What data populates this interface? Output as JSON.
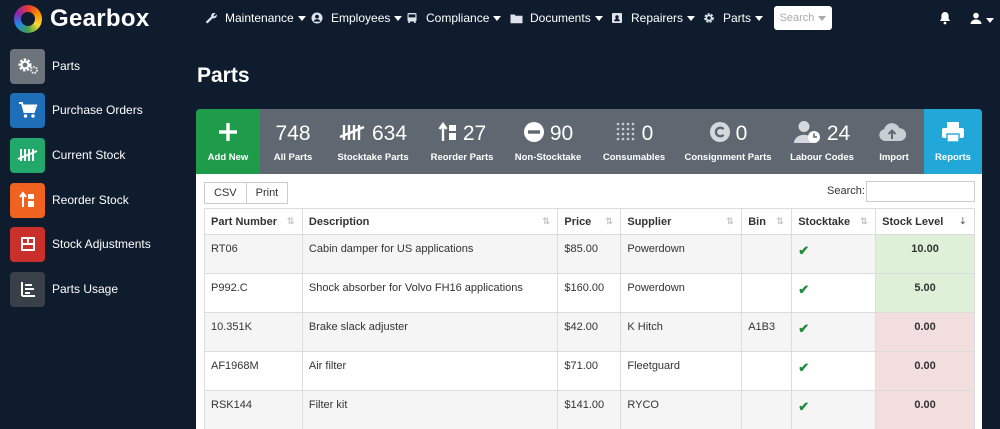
{
  "app": {
    "name": "Gearbox"
  },
  "nav": {
    "items": [
      {
        "label": "Maintenance",
        "icon": "wrench-icon"
      },
      {
        "label": "Employees",
        "icon": "user-circle-icon"
      },
      {
        "label": "Compliance",
        "icon": "bus-icon"
      },
      {
        "label": "Documents",
        "icon": "folder-icon"
      },
      {
        "label": "Repairers",
        "icon": "address-card-icon"
      },
      {
        "label": "Parts",
        "icon": "gear-icon"
      }
    ],
    "search_label": "Search"
  },
  "sidebar": {
    "items": [
      {
        "label": "Parts",
        "icon": "gears-icon",
        "color": "#6d737a"
      },
      {
        "label": "Purchase Orders",
        "icon": "cart-icon",
        "color": "#1f6fb8"
      },
      {
        "label": "Current Stock",
        "icon": "tally-icon",
        "color": "#22a86b"
      },
      {
        "label": "Reorder Stock",
        "icon": "reorder-icon",
        "color": "#f0621f"
      },
      {
        "label": "Stock Adjustments",
        "icon": "adjust-icon",
        "color": "#c9302c"
      },
      {
        "label": "Parts Usage",
        "icon": "list-icon",
        "color": "#3a4048"
      }
    ]
  },
  "page": {
    "title": "Parts"
  },
  "toolbar": {
    "add_new": "Add New",
    "stats": [
      {
        "num": "748",
        "label": "All Parts"
      },
      {
        "num": "634",
        "label": "Stocktake Parts"
      },
      {
        "num": "27",
        "label": "Reorder Parts"
      },
      {
        "num": "90",
        "label": "Non-Stocktake"
      },
      {
        "num": "0",
        "label": "Consumables"
      },
      {
        "num": "0",
        "label": "Consignment Parts"
      },
      {
        "num": "24",
        "label": "Labour Codes"
      },
      {
        "num": "",
        "label": "Import"
      }
    ],
    "reports": "Reports"
  },
  "table_tools": {
    "csv": "CSV",
    "print": "Print",
    "search_label": "Search:"
  },
  "table": {
    "headers": [
      "Part Number",
      "Description",
      "Price",
      "Supplier",
      "Bin",
      "Stocktake",
      "Stock Level"
    ],
    "rows": [
      {
        "part": "RT06",
        "desc": "Cabin damper for US applications",
        "price": "$85.00",
        "supplier": "Powerdown",
        "bin": "",
        "stock": "10.00",
        "status": "ok"
      },
      {
        "part": "P992.C",
        "desc": "Shock absorber for Volvo FH16 applications",
        "price": "$160.00",
        "supplier": "Powerdown",
        "bin": "",
        "stock": "5.00",
        "status": "ok"
      },
      {
        "part": "10.351K",
        "desc": "Brake slack adjuster",
        "price": "$42.00",
        "supplier": "K Hitch",
        "bin": "A1B3",
        "stock": "0.00",
        "status": "low"
      },
      {
        "part": "AF1968M",
        "desc": "Air filter",
        "price": "$71.00",
        "supplier": "Fleetguard",
        "bin": "",
        "stock": "0.00",
        "status": "low"
      },
      {
        "part": "RSK144",
        "desc": "Filter kit",
        "price": "$141.00",
        "supplier": "RYCO",
        "bin": "",
        "stock": "0.00",
        "status": "low"
      }
    ]
  }
}
